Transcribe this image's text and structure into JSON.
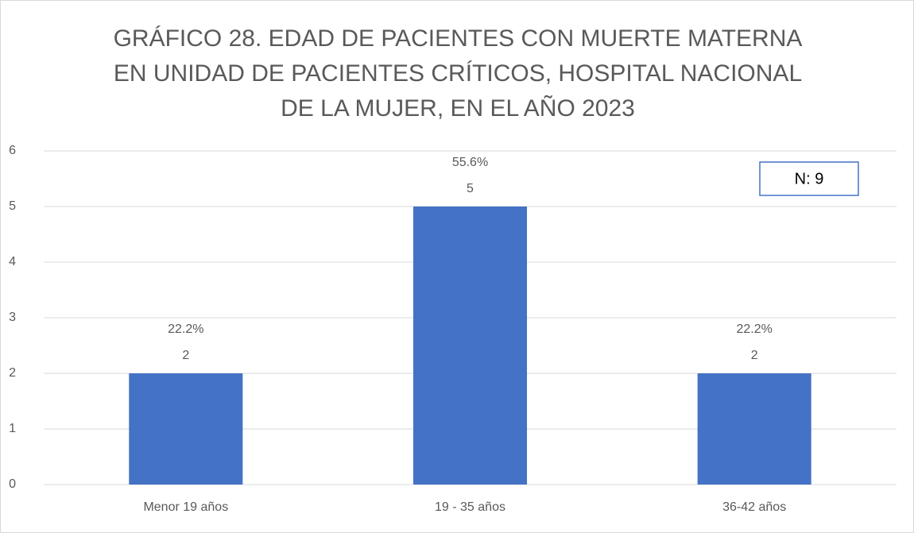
{
  "chart_data": {
    "type": "bar",
    "title": [
      "GRÁFICO 28. EDAD DE PACIENTES CON MUERTE MATERNA",
      "EN UNIDAD DE PACIENTES CRÍTICOS, HOSPITAL NACIONAL",
      "DE LA MUJER, EN EL AÑO 2023"
    ],
    "categories": [
      "Menor 19 años",
      "19 - 35 años",
      "36-42 años"
    ],
    "values": [
      2,
      5,
      2
    ],
    "percent_labels": [
      "22.2%",
      "55.6%",
      "22.2%"
    ],
    "color": "#4472c4",
    "ylim": [
      0,
      6
    ],
    "yticks": [
      0,
      1,
      2,
      3,
      4,
      5,
      6
    ],
    "grid": true,
    "annotation": "N: 9"
  }
}
